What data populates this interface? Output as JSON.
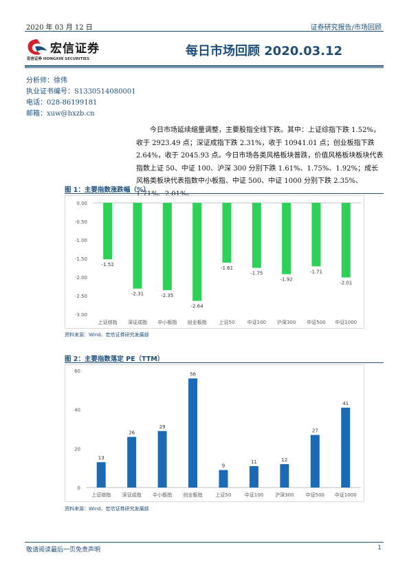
{
  "header": {
    "date": "2020 年 03 月 12 日",
    "category": "证券研究报告/市场回顾"
  },
  "logo": {
    "name": "宏信证券",
    "sub": "宏信证券 HONGXIN SECURITIES"
  },
  "title": "每日市场回顾 2020.03.12",
  "analyst": {
    "name": "分析师：徐伟",
    "cert": "执业证书编号：S1330514080001",
    "phone": "电话：028-86199181",
    "email": "邮箱：xuw@hxzb.cn"
  },
  "summary": "今日市场延续缩量调整，主要股指全线下跌。其中：上证综指下跌 1.52%，收于 2923.49 点；深证成指下跌 2.31%，收于 10941.01 点；创业板指下跌 2.64%，收于 2045.93 点。今日市场各类风格板块普跌，价值风格板块板块代表指数上证 50、中证 100、沪深 300 分别下跌 1.61%、1.75%、1.92%；成长风格类板块代表指数中小板指、中证 500、中证 1000 分别下跌 2.35%、1.71%、2.01%。",
  "figures": [
    {
      "title": "图 1：主要指数涨跌幅（%）",
      "source": "资料来源：Wind、宏信证券研究发展部"
    },
    {
      "title": "图 2：主要指数落定 PE（TTM）",
      "source": "资料来源：Wind、宏信证券研究发展部"
    }
  ],
  "chart_data": [
    {
      "type": "bar",
      "categories": [
        "上证综指",
        "深证成指",
        "中小板指",
        "创业板指",
        "上证50",
        "中证100",
        "沪深300",
        "中证500",
        "中证1000"
      ],
      "values": [
        -1.52,
        -2.31,
        -2.35,
        -2.64,
        -1.61,
        -1.75,
        -1.92,
        -1.71,
        -2.01
      ],
      "value_labels": [
        "-1.52",
        "-2.31",
        "-2.35",
        "-2.64",
        "-1.61",
        "-1.75",
        "-1.92",
        "-1.71",
        "-2.01"
      ],
      "title": "图 1：主要指数涨跌幅（%）",
      "ylim": [
        -3.0,
        0.0
      ],
      "yticks": [
        "0.00",
        "-0.50",
        "-1.00",
        "-1.50",
        "-2.00",
        "-2.50",
        "-3.00"
      ],
      "color": "#2ed158",
      "grid": false,
      "legend": "none"
    },
    {
      "type": "bar",
      "categories": [
        "上证综指",
        "深证成指",
        "中小板指",
        "创业板指",
        "上证50",
        "中证100",
        "沪深300",
        "中证500",
        "中证1000"
      ],
      "values": [
        13,
        26,
        29,
        56,
        9,
        11,
        12,
        27,
        41
      ],
      "value_labels": [
        "13",
        "26",
        "29",
        "56",
        "9",
        "11",
        "12",
        "27",
        "41"
      ],
      "title": "图 2：主要指数落定 PE（TTM）",
      "ylim": [
        0,
        60
      ],
      "yticks": [
        "60",
        "40",
        "20",
        "0"
      ],
      "color": "#1b6ab5",
      "grid": false,
      "legend": "none"
    }
  ],
  "footer": {
    "disclaimer": "敬请阅读最后一页免责声明",
    "page": "1"
  }
}
